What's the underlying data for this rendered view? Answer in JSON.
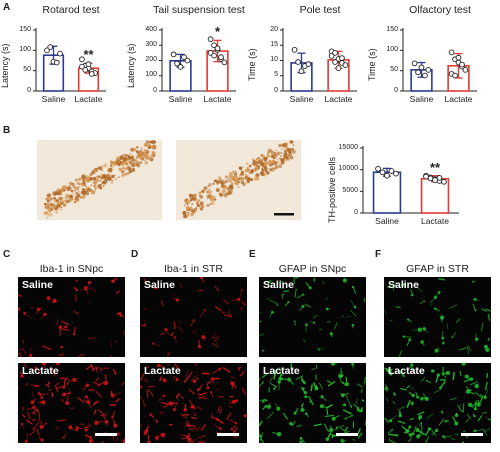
{
  "panels": {
    "A": "A",
    "B": "B",
    "C": "C",
    "D": "D",
    "E": "E",
    "F": "F"
  },
  "colors": {
    "saline": "#2b3a8f",
    "lactate": "#e23a32",
    "tissue_bg": "#f2e9dc",
    "stain": "#b06a2a",
    "iba_stain": "#e01414",
    "gfap_stain": "#22c82a"
  },
  "chart_data": [
    {
      "id": "rotarod",
      "type": "bar",
      "title": "Rotarod test",
      "ylabel": "Latency (s)",
      "categories": [
        "Saline",
        "Lactate"
      ],
      "ylim": [
        0,
        150
      ],
      "yticks": [
        0,
        50,
        100,
        150
      ],
      "values": [
        88,
        56
      ],
      "errors": [
        22,
        12
      ],
      "points": [
        [
          100,
          108,
          72,
          70,
          92
        ],
        [
          78,
          62,
          56,
          48,
          44,
          60,
          52,
          66,
          42
        ]
      ],
      "significance": "**"
    },
    {
      "id": "tail",
      "type": "bar",
      "title": "Tail suspension test",
      "ylabel": "Latency (s)",
      "categories": [
        "Saline",
        "Lactate"
      ],
      "ylim": [
        0,
        400
      ],
      "yticks": [
        0,
        100,
        200,
        300,
        400
      ],
      "values": [
        198,
        262
      ],
      "errors": [
        42,
        70
      ],
      "points": [
        [
          240,
          180,
          158,
          222,
          200
        ],
        [
          340,
          300,
          270,
          210,
          188,
          250,
          232,
          280,
          222
        ]
      ],
      "significance": "*"
    },
    {
      "id": "pole",
      "type": "bar",
      "title": "Pole test",
      "ylabel": "Time (s)",
      "categories": [
        "Saline",
        "Lactate"
      ],
      "ylim": [
        0,
        20
      ],
      "yticks": [
        0,
        5,
        10,
        15,
        20
      ],
      "values": [
        9.2,
        10.2
      ],
      "errors": [
        3.2,
        2.8
      ],
      "points": [
        [
          13.5,
          9.5,
          6.5,
          8.2,
          8.8
        ],
        [
          13,
          12.5,
          10.5,
          9.2,
          8.5,
          11.5,
          9.5,
          7.5,
          10.8
        ]
      ],
      "significance": ""
    },
    {
      "id": "olfactory",
      "type": "bar",
      "title": "Olfactory test",
      "ylabel": "Time (s)",
      "categories": [
        "Saline",
        "Lactate"
      ],
      "ylim": [
        0,
        150
      ],
      "yticks": [
        0,
        50,
        100,
        150
      ],
      "values": [
        52,
        62
      ],
      "errors": [
        18,
        30
      ],
      "points": [
        [
          68,
          46,
          58,
          38,
          52
        ],
        [
          95,
          78,
          70,
          60,
          52,
          42,
          38,
          82,
          65
        ]
      ],
      "significance": ""
    },
    {
      "id": "th",
      "type": "bar",
      "title": "",
      "ylabel": "TH-positive cells",
      "categories": [
        "Saline",
        "Lactate"
      ],
      "ylim": [
        0,
        15000
      ],
      "yticks": [
        0,
        5000,
        10000,
        15000
      ],
      "values": [
        9400,
        7900
      ],
      "errors": [
        900,
        700
      ],
      "points": [
        [
          10200,
          9400,
          8600,
          9700,
          9100
        ],
        [
          8600,
          8200,
          7800,
          7400,
          7200,
          8400,
          8000,
          7600,
          8100
        ]
      ],
      "significance": "**"
    }
  ],
  "micrographs": [
    {
      "id": "C",
      "title": "Iba-1 in SNpc",
      "top_label": "Saline",
      "bottom_label": "Lactate",
      "stain": "iba",
      "scale_bar": true
    },
    {
      "id": "D",
      "title": "Iba-1 in STR",
      "top_label": "Saline",
      "bottom_label": "Lactate",
      "stain": "iba",
      "scale_bar": true
    },
    {
      "id": "E",
      "title": "GFAP in SNpc",
      "top_label": "Saline",
      "bottom_label": "Lactate",
      "stain": "gfap",
      "scale_bar": true
    },
    {
      "id": "F",
      "title": "GFAP in STR",
      "top_label": "Saline",
      "bottom_label": "Lactate",
      "stain": "gfap",
      "scale_bar": true
    }
  ]
}
